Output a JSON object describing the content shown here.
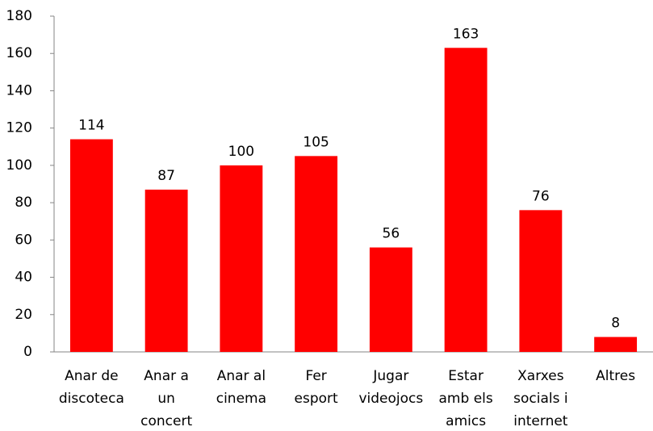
{
  "chart_data": {
    "type": "bar",
    "categories": [
      [
        "Anar de",
        "discoteca"
      ],
      [
        "Anar a",
        "un",
        "concert"
      ],
      [
        "Anar al",
        "cinema"
      ],
      [
        "Fer",
        "esport"
      ],
      [
        "Jugar",
        "videojocs"
      ],
      [
        "Estar",
        "amb els",
        "amics"
      ],
      [
        "Xarxes",
        "socials i",
        "internet"
      ],
      [
        "Altres"
      ]
    ],
    "values": [
      114,
      87,
      100,
      105,
      56,
      163,
      76,
      8
    ],
    "color": "#ff0000",
    "ylim": [
      0,
      180
    ],
    "yticks": [
      0,
      20,
      40,
      60,
      80,
      100,
      120,
      140,
      160,
      180
    ],
    "grid": false
  }
}
